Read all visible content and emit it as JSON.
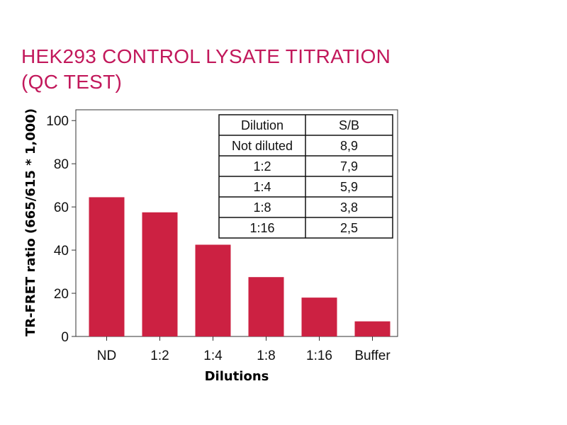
{
  "title_lines": [
    "HEK293 CONTROL LYSATE TITRATION",
    "(QC TEST)"
  ],
  "colors": {
    "bar": "#cc2142",
    "title": "#c2185b"
  },
  "chart_data": {
    "type": "bar",
    "title": "HEK293 CONTROL LYSATE TITRATION (QC TEST)",
    "xlabel": "Dilutions",
    "ylabel": "TR-FRET ratio (665/615 * 1,000)",
    "categories": [
      "ND",
      "1:2",
      "1:4",
      "1:8",
      "1:16",
      "Buffer"
    ],
    "values": [
      64.5,
      57.5,
      42.5,
      27.5,
      18,
      7
    ],
    "ylim": [
      0,
      105
    ],
    "yticks": [
      0,
      20,
      40,
      60,
      80,
      100
    ],
    "grid": false,
    "inset_table": {
      "headers": [
        "Dilution",
        "S/B"
      ],
      "rows": [
        [
          "Not diluted",
          "8,9"
        ],
        [
          "1:2",
          "7,9"
        ],
        [
          "1:4",
          "5,9"
        ],
        [
          "1:8",
          "3,8"
        ],
        [
          "1:16",
          "2,5"
        ]
      ]
    }
  }
}
